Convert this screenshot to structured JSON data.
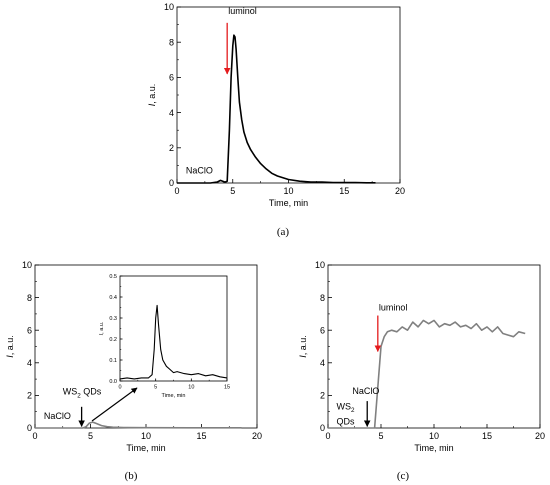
{
  "chart_data": [
    {
      "type": "line",
      "panel_label": "(a)",
      "xlabel": "Time, min",
      "ylabel": "I, a.u.",
      "ylabel_main": "I",
      "ylabel_rest": ", a.u.",
      "xlim": [
        0,
        20
      ],
      "ylim": [
        0,
        10
      ],
      "xticks": [
        "0",
        "5",
        "10",
        "15",
        "20"
      ],
      "yticks": [
        "0",
        "2",
        "4",
        "6",
        "8",
        "10"
      ],
      "series": [
        {
          "color": "#000000",
          "x": [
            0,
            1,
            2,
            3,
            3.6,
            3.9,
            4.1,
            4.3,
            4.5,
            4.7,
            4.85,
            5.0,
            5.1,
            5.2,
            5.3,
            5.45,
            5.6,
            5.8,
            6.0,
            6.3,
            6.6,
            7.0,
            7.5,
            8.0,
            8.5,
            9.0,
            10.0,
            11.0,
            12.0,
            13.0,
            14.0,
            15.0,
            16.0,
            17.0,
            17.8
          ],
          "y": [
            0,
            0,
            0,
            0,
            0.05,
            0.15,
            0.1,
            0.05,
            0.1,
            3.0,
            6.0,
            7.8,
            8.4,
            8.3,
            7.6,
            6.0,
            4.6,
            3.6,
            2.9,
            2.3,
            1.9,
            1.5,
            1.1,
            0.8,
            0.55,
            0.4,
            0.2,
            0.1,
            0.05,
            0.05,
            0.03,
            0.02,
            0.02,
            0.01,
            0.01
          ]
        }
      ],
      "annotations": [
        {
          "text": "luminol",
          "x": 4.6,
          "y": 9.6,
          "arrow": {
            "color": "#e41a1c",
            "x": 4.5,
            "y_from": 9.1,
            "y_to": 6.2
          }
        },
        {
          "text": "NaClO",
          "x": 0.8,
          "y": 0.55
        }
      ]
    },
    {
      "type": "line",
      "panel_label": "(b)",
      "xlabel": "Time, min",
      "ylabel": "I, a.u.",
      "ylabel_main": "I",
      "ylabel_rest": ", a.u.",
      "xlim": [
        0,
        20
      ],
      "ylim": [
        0,
        10
      ],
      "xticks": [
        "0",
        "5",
        "10",
        "15",
        "20"
      ],
      "yticks": [
        "0",
        "2",
        "4",
        "6",
        "8",
        "10"
      ],
      "series": [
        {
          "color": "#808080",
          "x": [
            0,
            4.3,
            4.6,
            4.9,
            5.2,
            5.5,
            6.0,
            6.5,
            7.0,
            8.0,
            10.0,
            14.0,
            18.0,
            18.6
          ],
          "y": [
            0,
            0,
            0.08,
            0.3,
            0.36,
            0.28,
            0.15,
            0.08,
            0.05,
            0.03,
            0.02,
            0.01,
            0.01,
            0.01
          ]
        }
      ],
      "annotations": [
        {
          "text": "WS",
          "subscript": "2",
          "text_after": " QDs",
          "x": 2.5,
          "y": 2.05,
          "arrow": {
            "color": "#000000",
            "x": 4.2,
            "y_from": 1.3,
            "y_to": 0.1
          }
        },
        {
          "text": "NaClO",
          "x": 0.8,
          "y": 0.55
        }
      ],
      "inset": {
        "xlabel": "Time, min",
        "ylabel": "I, a.u.",
        "ylabel_main": "I",
        "ylabel_rest": ", a.u.",
        "xlim": [
          0,
          15
        ],
        "ylim": [
          0,
          0.5
        ],
        "xticks": [
          "0",
          "5",
          "10",
          "15"
        ],
        "yticks": [
          "0.0",
          "0.1",
          "0.2",
          "0.3",
          "0.4",
          "0.5"
        ],
        "series": [
          {
            "color": "#000000",
            "x": [
              0,
              1,
              2,
              3,
              4,
              4.5,
              4.8,
              5.0,
              5.2,
              5.4,
              5.7,
              6.0,
              6.5,
              7.0,
              7.5,
              8.0,
              9.0,
              10.0,
              11.0,
              12.0,
              13.0,
              14.0,
              15.0
            ],
            "y": [
              0.01,
              0.015,
              0.01,
              0.015,
              0.015,
              0.03,
              0.15,
              0.3,
              0.36,
              0.27,
              0.15,
              0.1,
              0.07,
              0.055,
              0.04,
              0.045,
              0.035,
              0.03,
              0.035,
              0.025,
              0.03,
              0.02,
              0.015
            ]
          }
        ]
      }
    },
    {
      "type": "line",
      "panel_label": "(c)",
      "xlabel": "Time, min",
      "ylabel": "I, a.u.",
      "ylabel_main": "I",
      "ylabel_rest": ", a.u.",
      "xlim": [
        0,
        20
      ],
      "ylim": [
        0,
        10
      ],
      "xticks": [
        "0",
        "5",
        "10",
        "15",
        "20"
      ],
      "yticks": [
        "0",
        "2",
        "4",
        "6",
        "8",
        "10"
      ],
      "series": [
        {
          "color": "#808080",
          "x": [
            0,
            4.4,
            4.7,
            5.0,
            5.3,
            5.6,
            6.0,
            6.5,
            7.0,
            7.5,
            8.0,
            8.5,
            9.0,
            9.5,
            10.0,
            10.5,
            11.0,
            11.5,
            12.0,
            12.5,
            13.0,
            13.5,
            14.0,
            14.5,
            15.0,
            15.5,
            16.0,
            16.5,
            17.0,
            17.5,
            18.0,
            18.6
          ],
          "y": [
            0,
            0,
            2.5,
            5.0,
            5.6,
            5.9,
            6.0,
            5.9,
            6.2,
            6.0,
            6.5,
            6.2,
            6.6,
            6.4,
            6.6,
            6.2,
            6.4,
            6.3,
            6.5,
            6.2,
            6.3,
            6.1,
            6.4,
            6.0,
            6.2,
            5.9,
            6.2,
            5.8,
            5.7,
            5.6,
            5.9,
            5.8
          ]
        }
      ],
      "annotations": [
        {
          "text": "luminol",
          "x": 4.8,
          "y": 7.2,
          "arrow": {
            "color": "#e41a1c",
            "x": 4.7,
            "y_from": 6.9,
            "y_to": 4.7
          }
        },
        {
          "text": "NaClO",
          "x": 2.3,
          "y": 2.1,
          "arrow": {
            "color": "#000000",
            "x": 3.7,
            "y_from": 1.65,
            "y_to": 0.1
          }
        },
        {
          "text": "WS",
          "subscript": "2",
          "x": 0.8,
          "y": 1.15
        },
        {
          "text": "QDs",
          "x": 0.8,
          "y": 0.2
        }
      ]
    }
  ]
}
